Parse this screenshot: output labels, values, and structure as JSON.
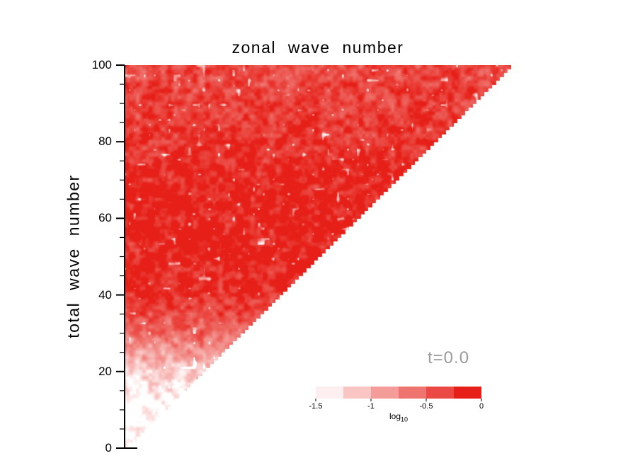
{
  "chart_data": {
    "type": "heatmap",
    "title": "zonal wave number",
    "xlabel": "",
    "ylabel": "total wave number",
    "x_range": [
      0,
      100
    ],
    "y_range": [
      0,
      100
    ],
    "y_ticks": [
      0,
      20,
      40,
      60,
      80,
      100
    ],
    "y_minor_tick_step": 5,
    "domain": "triangular region where zonal wave number <= total wave number; area below the diagonal is empty (white)",
    "annotation": {
      "text": "t=0.0",
      "color": "#9b9b9b"
    },
    "colormap": {
      "min_hex": "#ffffff",
      "max_hex": "#e62018"
    },
    "colorbar": {
      "label_base": "log",
      "label_sub": "10",
      "ticks": [
        "-1.5",
        "-1",
        "-0.5",
        "0"
      ],
      "range": [
        -1.5,
        0
      ],
      "segments": 6
    },
    "field_profile": {
      "description": "approximate log10 normalized spectral amplitude as a function of total wave number n (white = -1.5 and below, saturated red = 0)",
      "n": [
        0,
        10,
        20,
        25,
        30,
        35,
        40,
        50,
        60,
        70,
        80,
        90,
        100
      ],
      "log10_amplitude": [
        -1.55,
        -1.5,
        -1.2,
        -0.85,
        -0.5,
        -0.28,
        -0.12,
        -0.02,
        0,
        -0.03,
        -0.12,
        -0.22,
        -0.3
      ]
    },
    "noise": {
      "amplitude1": 0.26,
      "scale1": 9,
      "amplitude2": 0.13,
      "scale2": 4.5,
      "spot_scale": 7,
      "spot_threshold": 0.87,
      "spot_strength": 10
    }
  }
}
